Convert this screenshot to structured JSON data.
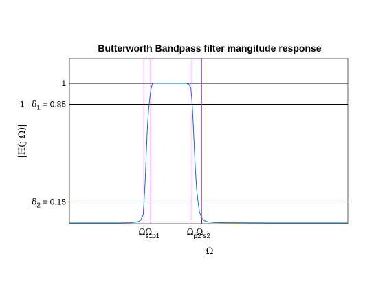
{
  "chart_data": {
    "type": "line",
    "title": "Butterworth Bandpass filter mangitude response",
    "xlabel": "Ω",
    "ylabel": "|H(j Ω)|",
    "ylim": [
      0,
      1.03
    ],
    "grid": false,
    "legend": "none",
    "y_ticks": [
      {
        "value": 1,
        "label": "1"
      },
      {
        "value": 0.85,
        "label": "1 - δ1 = 0.85",
        "prefix": "1 - ",
        "sym": "δ",
        "sub": "1",
        "suffix": " = 0.85"
      },
      {
        "value": 0.15,
        "label": "δ2 = 0.15",
        "prefix": "",
        "sym": "δ",
        "sub": "2",
        "suffix": " = 0.15"
      }
    ],
    "x_ticks": [
      {
        "name": "Ωs1",
        "sym": "Ω",
        "sub": "s1"
      },
      {
        "name": "Ωp1",
        "sym": "Ω",
        "sub": "p1"
      },
      {
        "name": "Ωp2",
        "sym": "Ω",
        "sub": "p2"
      },
      {
        "name": "Ωs2",
        "sym": "Ω",
        "sub": "s2"
      }
    ],
    "frequencies": {
      "s1": 0.268,
      "p1": 0.292,
      "p2": 0.441,
      "s2": 0.475
    },
    "xlim": [
      0,
      1
    ],
    "hlines": [
      {
        "name": "passband-edge-1",
        "y": 1,
        "color": "#000000"
      },
      {
        "name": "passband-ripple",
        "y": 0.85,
        "color": "#000000"
      },
      {
        "name": "stopband-atten",
        "y": 0.15,
        "color": "#ff0000"
      }
    ],
    "vline_color": "#ff00ff",
    "series": [
      {
        "color": "#0072bd",
        "x": [
          0,
          0.1,
          0.18,
          0.22,
          0.24,
          0.25,
          0.255,
          0.26,
          0.265,
          0.268,
          0.272,
          0.276,
          0.28,
          0.284,
          0.288,
          0.292,
          0.297,
          0.302,
          0.31,
          0.33,
          0.36,
          0.4,
          0.42,
          0.43,
          0.436,
          0.441,
          0.445,
          0.449,
          0.453,
          0.457,
          0.462,
          0.467,
          0.472,
          0.475,
          0.48,
          0.49,
          0.5,
          0.52,
          0.56,
          0.62,
          0.75,
          1
        ],
        "y": [
          0.0,
          0.0,
          0.0,
          0.002,
          0.006,
          0.012,
          0.02,
          0.035,
          0.06,
          0.15,
          0.3,
          0.5,
          0.68,
          0.8,
          0.88,
          0.95,
          0.99,
          1.0,
          1.0,
          1.0,
          1.0,
          1.0,
          1.0,
          0.99,
          0.97,
          0.85,
          0.7,
          0.52,
          0.36,
          0.24,
          0.15,
          0.08,
          0.05,
          0.035,
          0.022,
          0.012,
          0.007,
          0.004,
          0.002,
          0.001,
          0.0,
          0.0
        ]
      }
    ]
  }
}
